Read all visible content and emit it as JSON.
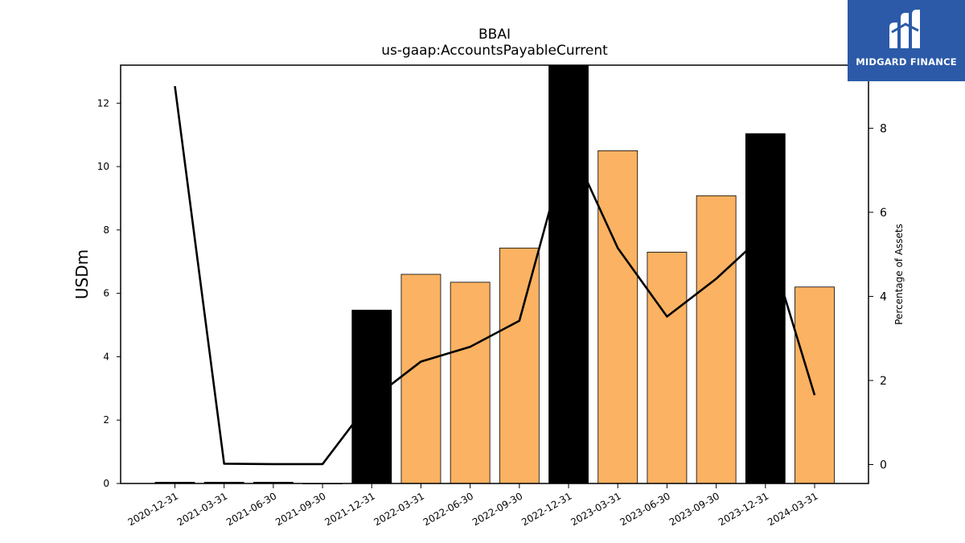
{
  "logo": {
    "text": "MIDGARD FINANCE",
    "background": "#2c5aa8"
  },
  "chart_data": {
    "type": "bar",
    "title": "BBAI",
    "subtitle": "us-gaap:AccountsPayableCurrent",
    "ylabel": "USDm",
    "y2label": "Percentage of Assets",
    "categories": [
      "2020-12-31",
      "2021-03-31",
      "2021-06-30",
      "2021-09-30",
      "2021-12-31",
      "2022-03-31",
      "2022-06-30",
      "2022-09-30",
      "2022-12-31",
      "2023-03-31",
      "2023-06-30",
      "2023-09-30",
      "2023-12-31",
      "2024-03-31"
    ],
    "series": [
      {
        "type": "bar",
        "axis": "left",
        "values": [
          0.04,
          0.04,
          0.04,
          0.0,
          5.47,
          6.6,
          6.35,
          7.43,
          13.3,
          10.5,
          7.3,
          9.08,
          11.04,
          6.2
        ],
        "colors": [
          "#000000",
          "#000000",
          "#000000",
          "#000000",
          "#000000",
          "#fbb262",
          "#fbb262",
          "#fbb262",
          "#000000",
          "#fbb262",
          "#fbb262",
          "#fbb262",
          "#000000",
          "#fbb262"
        ]
      },
      {
        "type": "line",
        "axis": "right",
        "values": [
          9.0,
          0.02,
          0.01,
          0.01,
          1.55,
          2.45,
          2.8,
          3.42,
          7.7,
          5.15,
          3.52,
          4.42,
          5.5,
          1.65
        ],
        "color": "#000000"
      }
    ],
    "ylim": [
      0,
      13.2
    ],
    "yticks": [
      0,
      2,
      4,
      6,
      8,
      10,
      12
    ],
    "y2lim": [
      -0.45,
      9.5
    ],
    "y2ticks": [
      0,
      2,
      4,
      6,
      8
    ],
    "grid": false
  }
}
